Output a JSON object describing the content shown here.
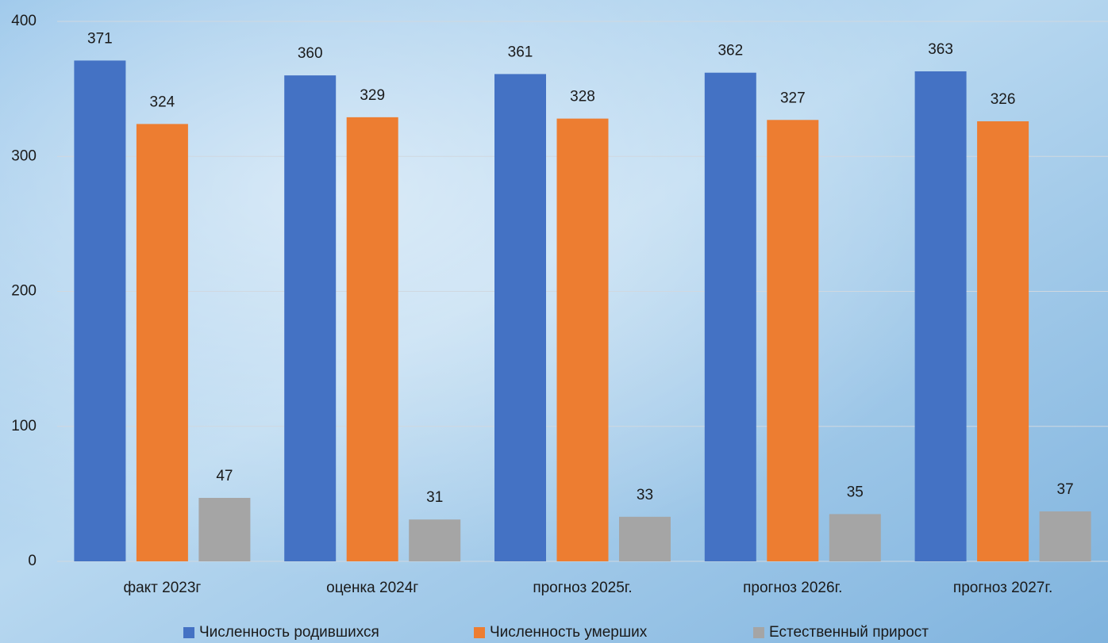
{
  "chart_data": {
    "type": "bar",
    "categories": [
      "факт 2023г",
      "оценка 2024г",
      "прогноз 2025г.",
      "прогноз 2026г.",
      "прогноз 2027г."
    ],
    "series": [
      {
        "name": "Численность родившихся",
        "color": "#4472c4",
        "values": [
          371,
          360,
          361,
          362,
          363
        ]
      },
      {
        "name": "Численность умерших",
        "color": "#ed7d31",
        "values": [
          324,
          329,
          328,
          327,
          326
        ]
      },
      {
        "name": "Естественный прирост",
        "color": "#a5a5a5",
        "values": [
          47,
          31,
          33,
          35,
          37
        ]
      }
    ],
    "ylim": [
      0,
      400
    ],
    "yticks": [
      0,
      100,
      200,
      300,
      400
    ],
    "grid": true,
    "legend": "bottom"
  }
}
